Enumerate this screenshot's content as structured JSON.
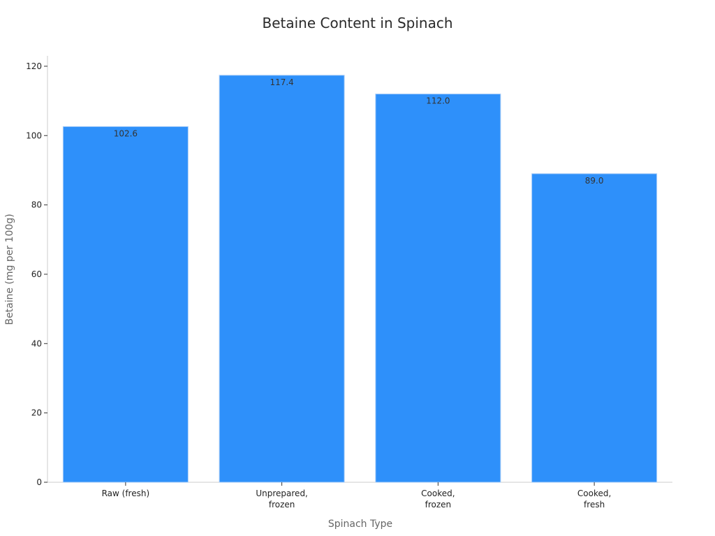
{
  "chart_data": {
    "type": "bar",
    "title": "Betaine Content in Spinach",
    "xlabel": "Spinach Type",
    "ylabel": "Betaine (mg per 100g)",
    "categories": [
      [
        "Raw (fresh)"
      ],
      [
        "Unprepared,",
        "frozen"
      ],
      [
        "Cooked,",
        "frozen"
      ],
      [
        "Cooked,",
        "fresh"
      ]
    ],
    "values": [
      102.6,
      117.4,
      112.0,
      89.0
    ],
    "value_labels": [
      "102.6",
      "117.4",
      "112.0",
      "89.0"
    ],
    "ylim": [
      0,
      123
    ],
    "yticks": [
      0,
      20,
      40,
      60,
      80,
      100,
      120
    ],
    "grid": false,
    "colors": {
      "bar": "#2e90fa",
      "bar_edge": "#a9cdf7",
      "axis": "#cccccc",
      "tick": "#333333"
    }
  }
}
